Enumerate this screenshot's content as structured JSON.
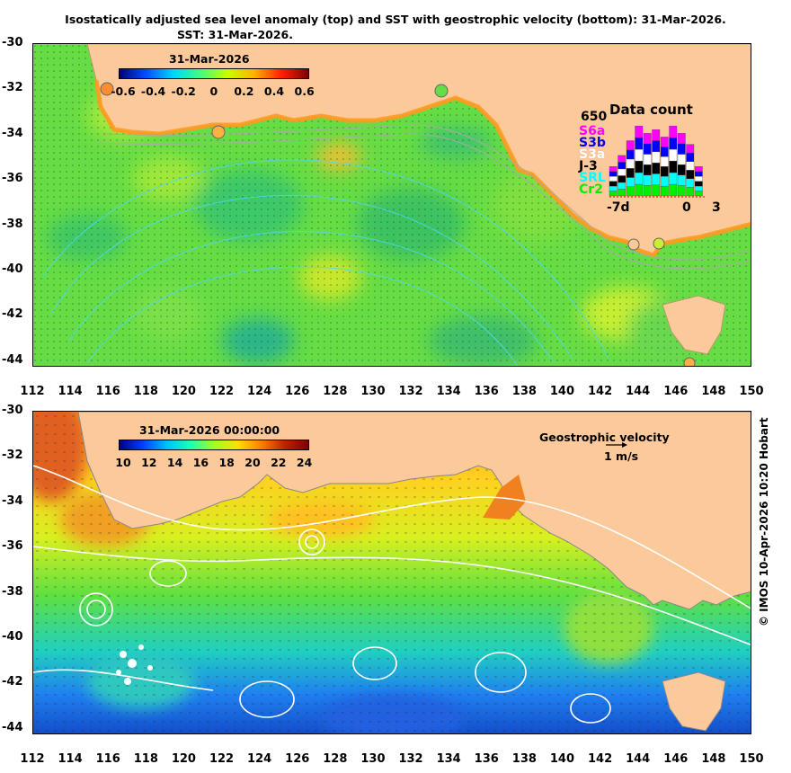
{
  "header": {
    "title": "Isostatically adjusted sea level anomaly (top) and SST with geostrophic velocity (bottom): 31-Mar-2026.",
    "subtitle": "SST: 31-Mar-2026."
  },
  "axes": {
    "lat_ticks": [
      "-30",
      "-32",
      "-34",
      "-36",
      "-38",
      "-40",
      "-42",
      "-44"
    ],
    "lon_ticks": [
      "112",
      "114",
      "116",
      "118",
      "120",
      "122",
      "124",
      "126",
      "128",
      "130",
      "132",
      "134",
      "136",
      "138",
      "140",
      "142",
      "144",
      "146",
      "148",
      "150"
    ],
    "lat_range": [
      -44,
      -30
    ],
    "lon_range": [
      112,
      150
    ]
  },
  "top_panel": {
    "colorbar_date": "31-Mar-2026",
    "colorbar_ticks": [
      "-0.6",
      "-0.4",
      "-0.2",
      "0",
      "0.2",
      "0.4",
      "0.6"
    ],
    "colorbar_range": [
      -0.6,
      0.6
    ],
    "colormap": [
      "#00007f",
      "#0050ff",
      "#00d6ff",
      "#40ff80",
      "#c8ff00",
      "#ffb000",
      "#ff2000",
      "#800000"
    ],
    "land_color": "#fbc99a",
    "data_count": {
      "label": "Data count",
      "max_label": "650",
      "missions": [
        {
          "name": "S6a",
          "color": "#ff00ff"
        },
        {
          "name": "S3b",
          "color": "#0000ff"
        },
        {
          "name": "S3a",
          "color": "#ffffff"
        },
        {
          "name": "J-3",
          "color": "#000000"
        },
        {
          "name": "SRL",
          "color": "#00ffff"
        },
        {
          "name": "Cr2",
          "color": "#00ee00"
        }
      ],
      "x_labels": [
        "-7d",
        "0",
        "3"
      ]
    }
  },
  "bottom_panel": {
    "colorbar_date": "31-Mar-2026 00:00:00",
    "colorbar_ticks": [
      "10",
      "12",
      "14",
      "16",
      "18",
      "20",
      "22",
      "24"
    ],
    "colorbar_range": [
      10,
      24
    ],
    "colormap": [
      "#00007f",
      "#0040ff",
      "#00c0ff",
      "#20ffb0",
      "#a0ff20",
      "#ffe000",
      "#ff8000",
      "#c02000",
      "#800000"
    ],
    "velocity_title": "Geostrophic velocity",
    "velocity_unit": "1 m/s"
  },
  "credit": "© IMOS 10-Apr-2026 10:20 Hobart"
}
